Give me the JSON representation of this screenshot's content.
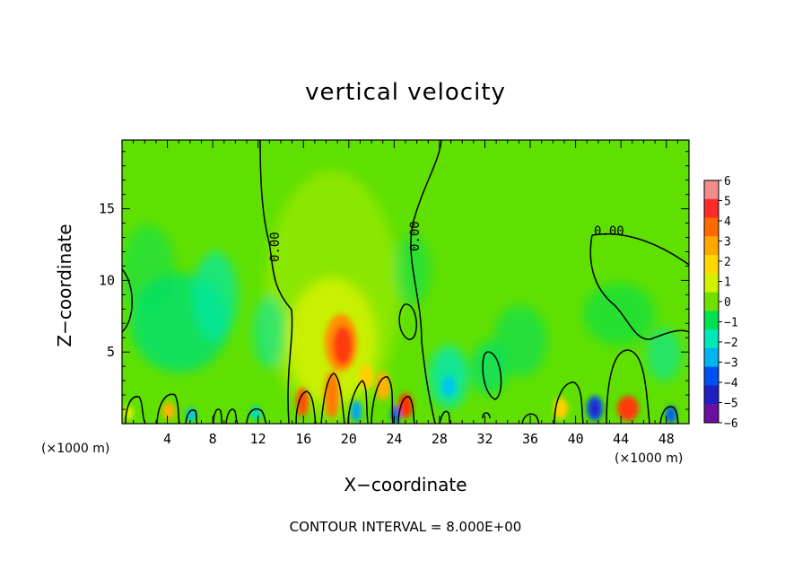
{
  "chart_data": {
    "type": "heatmap",
    "title": "vertical velocity",
    "xlabel": "X−coordinate",
    "ylabel": "Z−coordinate",
    "x_unit": "(×1000 m)",
    "x_range": [
      0,
      50
    ],
    "y_range": [
      0,
      19.8
    ],
    "x_ticks": [
      "4",
      "8",
      "12",
      "16",
      "20",
      "24",
      "28",
      "32",
      "36",
      "40",
      "44",
      "48"
    ],
    "y_ticks": [
      "5",
      "10",
      "15"
    ],
    "contour_interval_text": "CONTOUR INTERVAL = 8.000E+00",
    "contour_labels": [
      "0.00",
      "0.00",
      "0.00"
    ],
    "colorbar": {
      "min": -6,
      "max": 6,
      "labels": [
        "6",
        "5",
        "4",
        "3",
        "2",
        "1",
        "0",
        "−1",
        "−2",
        "−3",
        "−4",
        "−5",
        "−6"
      ],
      "colors": [
        "#f08c8c",
        "#ff2a2a",
        "#ff6a00",
        "#ffa800",
        "#ffd800",
        "#d2f000",
        "#70e000",
        "#00e050",
        "#00e8b8",
        "#00b4f0",
        "#0050f0",
        "#2020c0",
        "#6a10a0"
      ]
    },
    "features": [
      {
        "kind": "updraft",
        "x": 19.5,
        "z": 5.5,
        "value": 4.5
      },
      {
        "kind": "updraft",
        "x": 16.0,
        "z": 1.3,
        "value": 3.0
      },
      {
        "kind": "updraft",
        "x": 18.8,
        "z": 2.0,
        "value": 3.2
      },
      {
        "kind": "updraft",
        "x": 25.2,
        "z": 1.2,
        "value": 3.8
      },
      {
        "kind": "updraft",
        "x": 44.5,
        "z": 1.1,
        "value": 4.0
      },
      {
        "kind": "updraft",
        "x": 4.3,
        "z": 1.0,
        "value": 2.0
      },
      {
        "kind": "updraft",
        "x": 40.5,
        "z": 1.2,
        "value": 2.0
      },
      {
        "kind": "downdraft",
        "x": 41.8,
        "z": 1.0,
        "value": -4.0
      },
      {
        "kind": "downdraft",
        "x": 24.1,
        "z": 0.5,
        "value": -3.0
      },
      {
        "kind": "downdraft",
        "x": 48.5,
        "z": 0.6,
        "value": -3.0
      },
      {
        "kind": "downdraft",
        "x": 20.5,
        "z": 0.8,
        "value": -2.5
      },
      {
        "kind": "downdraft",
        "x": 29.5,
        "z": 2.8,
        "value": -1.8
      }
    ]
  }
}
